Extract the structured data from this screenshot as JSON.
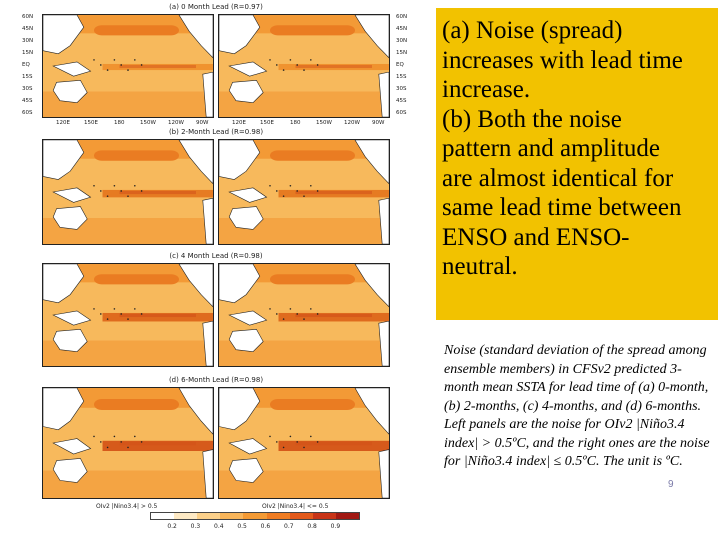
{
  "figure": {
    "panel_titles": [
      "(a) 0 Month Lead (R=0.97)",
      "(b) 2-Month Lead (R=0.98)",
      "(c) 4 Month Lead (R=0.98)",
      "(d) 6-Month Lead (R=0.98)"
    ],
    "lat_labels_left": [
      "60N",
      "45N",
      "30N",
      "15N",
      "EQ",
      "15S",
      "30S",
      "45S",
      "60S"
    ],
    "lat_labels_right": [
      "60N",
      "45N",
      "30N",
      "15N",
      "EQ",
      "15S",
      "30S",
      "45S",
      "60S"
    ],
    "lon_labels": [
      "120E",
      "150E",
      "180",
      "150W",
      "120W",
      "90W"
    ],
    "bottom_left_label": "OIv2 |Nino3.4| > 0.5",
    "bottom_right_label": "OIv2 |Nino3.4| <= 0.5",
    "colorbar_ticks": [
      "0.2",
      "0.3",
      "0.4",
      "0.5",
      "0.6",
      "0.7",
      "0.8",
      "0.9"
    ],
    "colorbar_colors": [
      "#ffffff",
      "#fde9c4",
      "#fbd08a",
      "#f8b55a",
      "#f49a34",
      "#ef7c22",
      "#e35a1b",
      "#c83417",
      "#a11812"
    ]
  },
  "highlight": {
    "line1": "(a) Noise (spread)",
    "line2": "increases with lead time",
    "line3": "increase.",
    "line4": "(b) Both the noise",
    "line5": "pattern and amplitude",
    "line6": "are almost identical for",
    "line7": "same lead time between",
    "line8": "ENSO and ENSO-",
    "line9": "neutral."
  },
  "caption": {
    "text": "Noise (standard deviation of the spread among ensemble members) in CFSv2 predicted 3-month mean SSTA for lead time of (a) 0-month, (b) 2-months, (c) 4-months, and (d) 6-months. Left panels are the noise for OIv2 |Niño3.4 index| > 0.5ºC, and the right ones are the noise for |Niño3.4 index| ≤ 0.5ºC. The unit is ºC."
  },
  "page_number": "9"
}
